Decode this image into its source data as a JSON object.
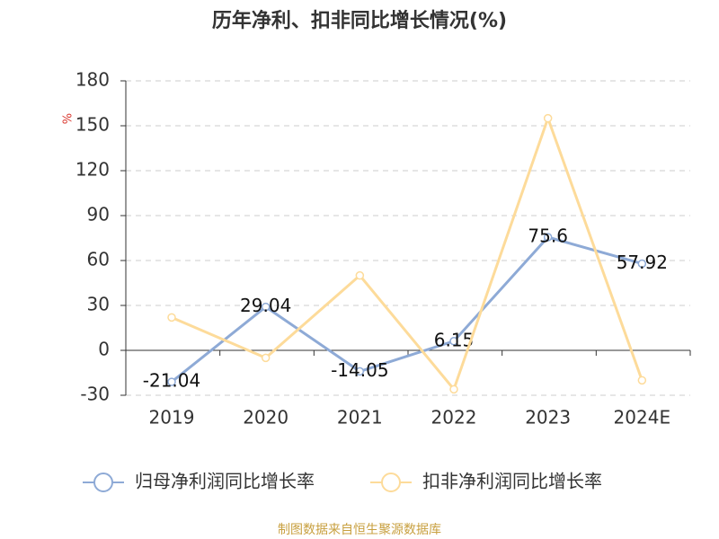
{
  "chart_data": {
    "type": "line",
    "title": "历年净利、扣非同比增长情况(%)",
    "y_unit": "%",
    "source": "制图数据来自恒生聚源数据库",
    "categories": [
      "2019",
      "2020",
      "2021",
      "2022",
      "2023",
      "2024E"
    ],
    "series": [
      {
        "name": "归母净利润同比增长率",
        "color": "#8eaad6",
        "values": [
          -21.04,
          29.04,
          -14.05,
          6.15,
          75.6,
          57.92
        ],
        "show_labels": true
      },
      {
        "name": "扣非净利润同比增长率",
        "color": "#fddb9a",
        "values": [
          22,
          -5,
          50,
          -26,
          155,
          -20
        ],
        "show_labels": false
      }
    ],
    "ylim": [
      -30,
      180
    ],
    "yticks": [
      -30,
      0,
      30,
      60,
      90,
      120,
      150,
      180
    ],
    "grid": true
  }
}
